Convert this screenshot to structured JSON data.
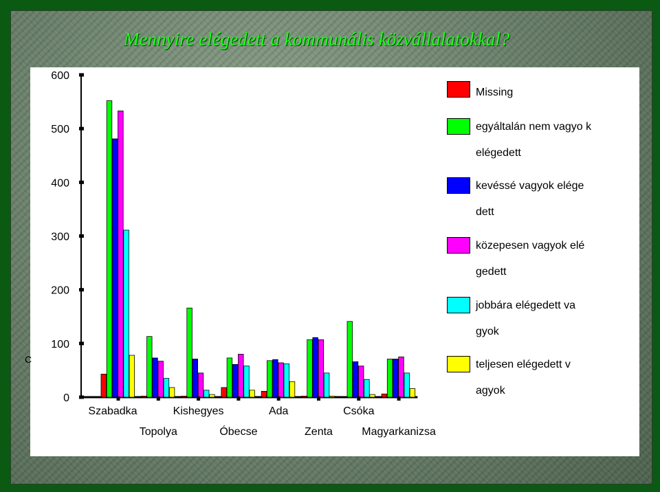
{
  "slide": {
    "title": "Mennyire elégedett a kommunális közvállalatokkal?"
  },
  "chart_data": {
    "type": "bar",
    "title": "",
    "xlabel": "",
    "ylabel": "",
    "ylim": [
      0,
      600
    ],
    "yticks": [
      0,
      100,
      200,
      300,
      400,
      500,
      600
    ],
    "categories": [
      "Szabadka",
      "Topolya",
      "Kishegyes",
      "Óbecse",
      "Ada",
      "Zenta",
      "Csóka",
      "Magyarkanizsa"
    ],
    "series": [
      {
        "name": "Missing",
        "color": "#ff0000",
        "values": [
          43,
          2,
          2,
          18,
          11,
          2,
          1,
          6
        ]
      },
      {
        "name": "egyáltalán nem vagyok elégedett",
        "color": "#00ff00",
        "values": [
          552,
          113,
          166,
          73,
          68,
          107,
          141,
          71
        ]
      },
      {
        "name": "kevéssé vagyok elégedett",
        "color": "#0000ff",
        "values": [
          481,
          73,
          71,
          61,
          70,
          111,
          66,
          71
        ]
      },
      {
        "name": "közepesen vagyok elégedett",
        "color": "#ff00ff",
        "values": [
          533,
          67,
          45,
          80,
          64,
          107,
          58,
          75
        ]
      },
      {
        "name": "jobbára elégedett vagyok",
        "color": "#00ffff",
        "values": [
          311,
          35,
          13,
          58,
          62,
          45,
          33,
          45
        ]
      },
      {
        "name": "teljesen elégedett vagyok",
        "color": "#ffff00",
        "values": [
          78,
          18,
          5,
          13,
          29,
          2,
          5,
          16
        ]
      }
    ],
    "legend_position": "right",
    "grid": false
  },
  "legend": {
    "items": [
      {
        "label": "Missing",
        "color": "#ff0000"
      },
      {
        "label": "egyáltalán nem vagyo k elégedett",
        "color": "#00ff00"
      },
      {
        "label": "kevéssé vagyok elége dett",
        "color": "#0000ff"
      },
      {
        "label": "közepesen vagyok elé gedett",
        "color": "#ff00ff"
      },
      {
        "label": "jobbára elégedett va gyok",
        "color": "#00ffff"
      },
      {
        "label": "teljesen elégedett v agyok",
        "color": "#ffff00"
      }
    ]
  }
}
